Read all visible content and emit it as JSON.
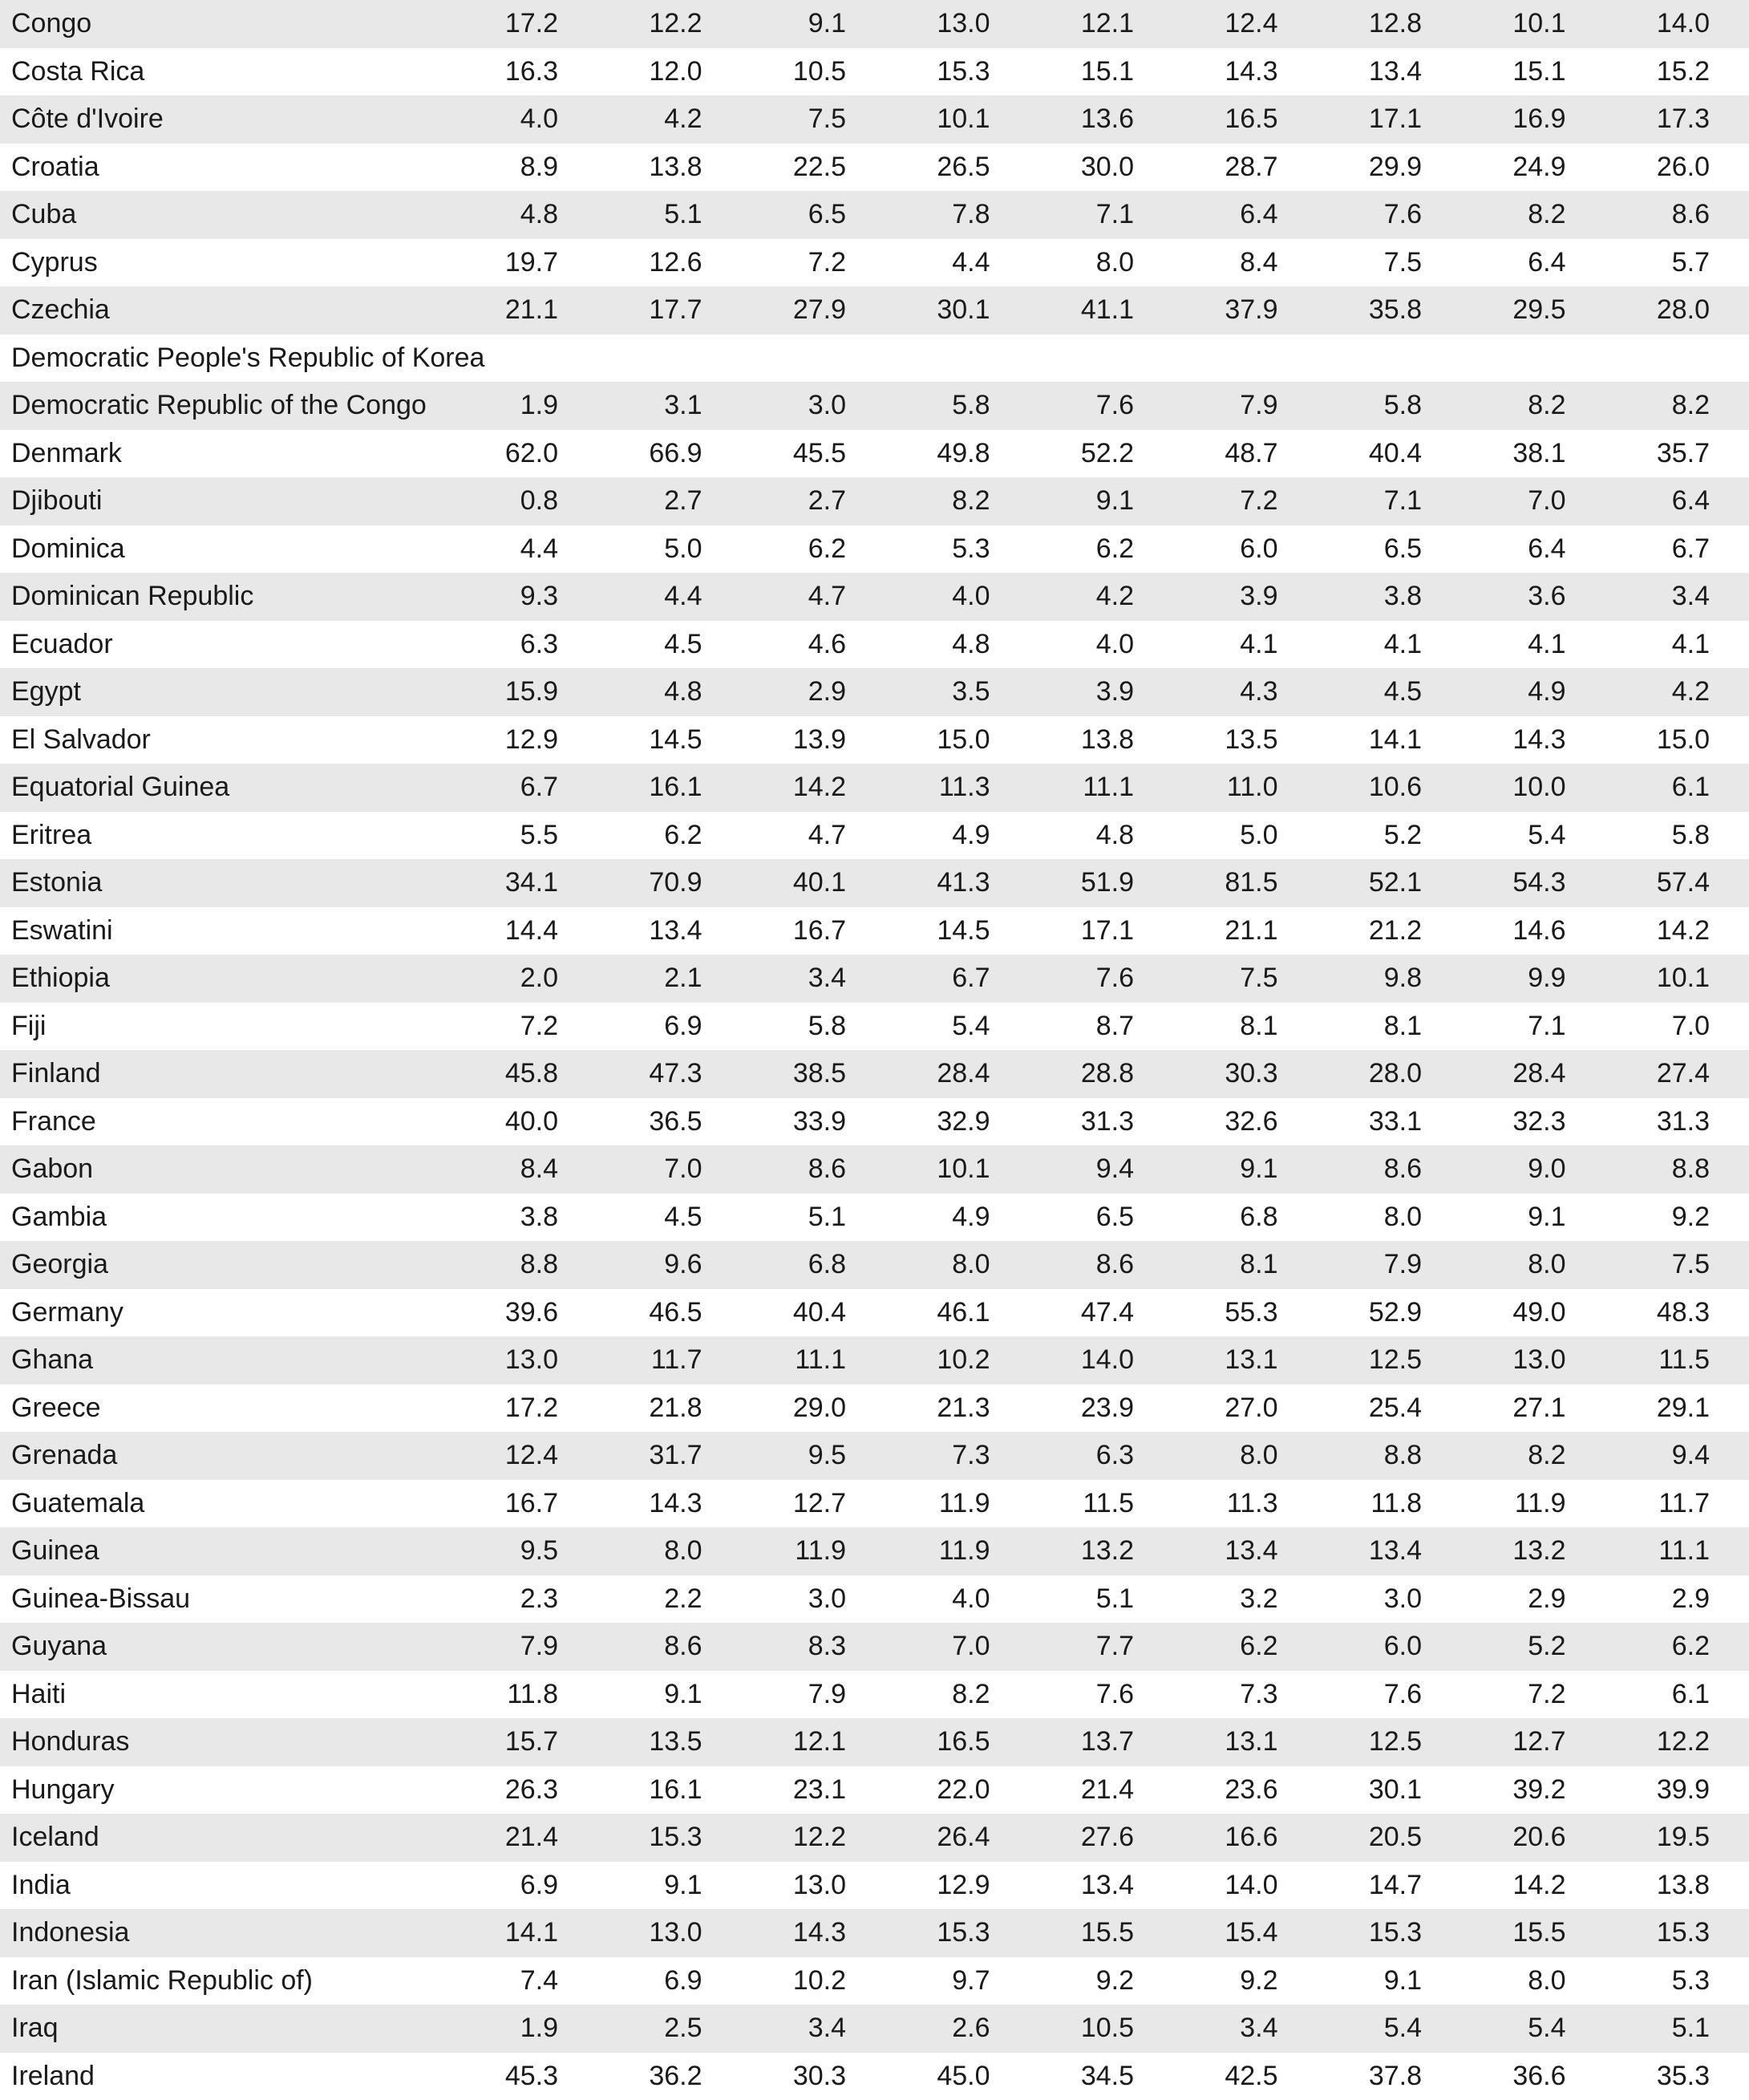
{
  "table": {
    "rows": [
      {
        "country": "Congo",
        "values": [
          "17.2",
          "12.2",
          "9.1",
          "13.0",
          "12.1",
          "12.4",
          "12.8",
          "10.1",
          "14.0"
        ]
      },
      {
        "country": "Costa Rica",
        "values": [
          "16.3",
          "12.0",
          "10.5",
          "15.3",
          "15.1",
          "14.3",
          "13.4",
          "15.1",
          "15.2"
        ]
      },
      {
        "country": "Côte d'Ivoire",
        "values": [
          "4.0",
          "4.2",
          "7.5",
          "10.1",
          "13.6",
          "16.5",
          "17.1",
          "16.9",
          "17.3"
        ]
      },
      {
        "country": "Croatia",
        "values": [
          "8.9",
          "13.8",
          "22.5",
          "26.5",
          "30.0",
          "28.7",
          "29.9",
          "24.9",
          "26.0"
        ]
      },
      {
        "country": "Cuba",
        "values": [
          "4.8",
          "5.1",
          "6.5",
          "7.8",
          "7.1",
          "6.4",
          "7.6",
          "8.2",
          "8.6"
        ]
      },
      {
        "country": "Cyprus",
        "values": [
          "19.7",
          "12.6",
          "7.2",
          "4.4",
          "8.0",
          "8.4",
          "7.5",
          "6.4",
          "5.7"
        ]
      },
      {
        "country": "Czechia",
        "values": [
          "21.1",
          "17.7",
          "27.9",
          "30.1",
          "41.1",
          "37.9",
          "35.8",
          "29.5",
          "28.0"
        ]
      },
      {
        "country": "Democratic People's Republic of Korea",
        "values": [
          "",
          "",
          "",
          "",
          "",
          "",
          "",
          "",
          ""
        ]
      },
      {
        "country": "Democratic Republic of the Congo",
        "values": [
          "1.9",
          "3.1",
          "3.0",
          "5.8",
          "7.6",
          "7.9",
          "5.8",
          "8.2",
          "8.2"
        ]
      },
      {
        "country": "Denmark",
        "values": [
          "62.0",
          "66.9",
          "45.5",
          "49.8",
          "52.2",
          "48.7",
          "40.4",
          "38.1",
          "35.7"
        ]
      },
      {
        "country": "Djibouti",
        "values": [
          "0.8",
          "2.7",
          "2.7",
          "8.2",
          "9.1",
          "7.2",
          "7.1",
          "7.0",
          "6.4"
        ]
      },
      {
        "country": "Dominica",
        "values": [
          "4.4",
          "5.0",
          "6.2",
          "5.3",
          "6.2",
          "6.0",
          "6.5",
          "6.4",
          "6.7"
        ]
      },
      {
        "country": "Dominican Republic",
        "values": [
          "9.3",
          "4.4",
          "4.7",
          "4.0",
          "4.2",
          "3.9",
          "3.8",
          "3.6",
          "3.4"
        ]
      },
      {
        "country": "Ecuador",
        "values": [
          "6.3",
          "4.5",
          "4.6",
          "4.8",
          "4.0",
          "4.1",
          "4.1",
          "4.1",
          "4.1"
        ]
      },
      {
        "country": "Egypt",
        "values": [
          "15.9",
          "4.8",
          "2.9",
          "3.5",
          "3.9",
          "4.3",
          "4.5",
          "4.9",
          "4.2"
        ]
      },
      {
        "country": "El Salvador",
        "values": [
          "12.9",
          "14.5",
          "13.9",
          "15.0",
          "13.8",
          "13.5",
          "14.1",
          "14.3",
          "15.0"
        ]
      },
      {
        "country": "Equatorial Guinea",
        "values": [
          "6.7",
          "16.1",
          "14.2",
          "11.3",
          "11.1",
          "11.0",
          "10.6",
          "10.0",
          "6.1"
        ]
      },
      {
        "country": "Eritrea",
        "values": [
          "5.5",
          "6.2",
          "4.7",
          "4.9",
          "4.8",
          "5.0",
          "5.2",
          "5.4",
          "5.8"
        ]
      },
      {
        "country": "Estonia",
        "values": [
          "34.1",
          "70.9",
          "40.1",
          "41.3",
          "51.9",
          "81.5",
          "52.1",
          "54.3",
          "57.4"
        ]
      },
      {
        "country": "Eswatini",
        "values": [
          "14.4",
          "13.4",
          "16.7",
          "14.5",
          "17.1",
          "21.1",
          "21.2",
          "14.6",
          "14.2"
        ]
      },
      {
        "country": "Ethiopia",
        "values": [
          "2.0",
          "2.1",
          "3.4",
          "6.7",
          "7.6",
          "7.5",
          "9.8",
          "9.9",
          "10.1"
        ]
      },
      {
        "country": "Fiji",
        "values": [
          "7.2",
          "6.9",
          "5.8",
          "5.4",
          "8.7",
          "8.1",
          "8.1",
          "7.1",
          "7.0"
        ]
      },
      {
        "country": "Finland",
        "values": [
          "45.8",
          "47.3",
          "38.5",
          "28.4",
          "28.8",
          "30.3",
          "28.0",
          "28.4",
          "27.4"
        ]
      },
      {
        "country": "France",
        "values": [
          "40.0",
          "36.5",
          "33.9",
          "32.9",
          "31.3",
          "32.6",
          "33.1",
          "32.3",
          "31.3"
        ]
      },
      {
        "country": "Gabon",
        "values": [
          "8.4",
          "7.0",
          "8.6",
          "10.1",
          "9.4",
          "9.1",
          "8.6",
          "9.0",
          "8.8"
        ]
      },
      {
        "country": "Gambia",
        "values": [
          "3.8",
          "4.5",
          "5.1",
          "4.9",
          "6.5",
          "6.8",
          "8.0",
          "9.1",
          "9.2"
        ]
      },
      {
        "country": "Georgia",
        "values": [
          "8.8",
          "9.6",
          "6.8",
          "8.0",
          "8.6",
          "8.1",
          "7.9",
          "8.0",
          "7.5"
        ]
      },
      {
        "country": "Germany",
        "values": [
          "39.6",
          "46.5",
          "40.4",
          "46.1",
          "47.4",
          "55.3",
          "52.9",
          "49.0",
          "48.3"
        ]
      },
      {
        "country": "Ghana",
        "values": [
          "13.0",
          "11.7",
          "11.1",
          "10.2",
          "14.0",
          "13.1",
          "12.5",
          "13.0",
          "11.5"
        ]
      },
      {
        "country": "Greece",
        "values": [
          "17.2",
          "21.8",
          "29.0",
          "21.3",
          "23.9",
          "27.0",
          "25.4",
          "27.1",
          "29.1"
        ]
      },
      {
        "country": "Grenada",
        "values": [
          "12.4",
          "31.7",
          "9.5",
          "7.3",
          "6.3",
          "8.0",
          "8.8",
          "8.2",
          "9.4"
        ]
      },
      {
        "country": "Guatemala",
        "values": [
          "16.7",
          "14.3",
          "12.7",
          "11.9",
          "11.5",
          "11.3",
          "11.8",
          "11.9",
          "11.7"
        ]
      },
      {
        "country": "Guinea",
        "values": [
          "9.5",
          "8.0",
          "11.9",
          "11.9",
          "13.2",
          "13.4",
          "13.4",
          "13.2",
          "11.1"
        ]
      },
      {
        "country": "Guinea-Bissau",
        "values": [
          "2.3",
          "2.2",
          "3.0",
          "4.0",
          "5.1",
          "3.2",
          "3.0",
          "2.9",
          "2.9"
        ]
      },
      {
        "country": "Guyana",
        "values": [
          "7.9",
          "8.6",
          "8.3",
          "7.0",
          "7.7",
          "6.2",
          "6.0",
          "5.2",
          "6.2"
        ]
      },
      {
        "country": "Haiti",
        "values": [
          "11.8",
          "9.1",
          "7.9",
          "8.2",
          "7.6",
          "7.3",
          "7.6",
          "7.2",
          "6.1"
        ]
      },
      {
        "country": "Honduras",
        "values": [
          "15.7",
          "13.5",
          "12.1",
          "16.5",
          "13.7",
          "13.1",
          "12.5",
          "12.7",
          "12.2"
        ]
      },
      {
        "country": "Hungary",
        "values": [
          "26.3",
          "16.1",
          "23.1",
          "22.0",
          "21.4",
          "23.6",
          "30.1",
          "39.2",
          "39.9"
        ]
      },
      {
        "country": "Iceland",
        "values": [
          "21.4",
          "15.3",
          "12.2",
          "26.4",
          "27.6",
          "16.6",
          "20.5",
          "20.6",
          "19.5"
        ]
      },
      {
        "country": "India",
        "values": [
          "6.9",
          "9.1",
          "13.0",
          "12.9",
          "13.4",
          "14.0",
          "14.7",
          "14.2",
          "13.8"
        ]
      },
      {
        "country": "Indonesia",
        "values": [
          "14.1",
          "13.0",
          "14.3",
          "15.3",
          "15.5",
          "15.4",
          "15.3",
          "15.5",
          "15.3"
        ]
      },
      {
        "country": "Iran (Islamic Republic of)",
        "values": [
          "7.4",
          "6.9",
          "10.2",
          "9.7",
          "9.2",
          "9.2",
          "9.1",
          "8.0",
          "5.3"
        ]
      },
      {
        "country": "Iraq",
        "values": [
          "1.9",
          "2.5",
          "3.4",
          "2.6",
          "10.5",
          "3.4",
          "5.4",
          "5.4",
          "5.1"
        ]
      },
      {
        "country": "Ireland",
        "values": [
          "45.3",
          "36.2",
          "30.3",
          "45.0",
          "34.5",
          "42.5",
          "37.8",
          "36.6",
          "35.3"
        ]
      }
    ]
  },
  "colors": {
    "shaded_row": "#e8e8e8",
    "plain_row": "#ffffff",
    "text": "#1a1a1a"
  }
}
